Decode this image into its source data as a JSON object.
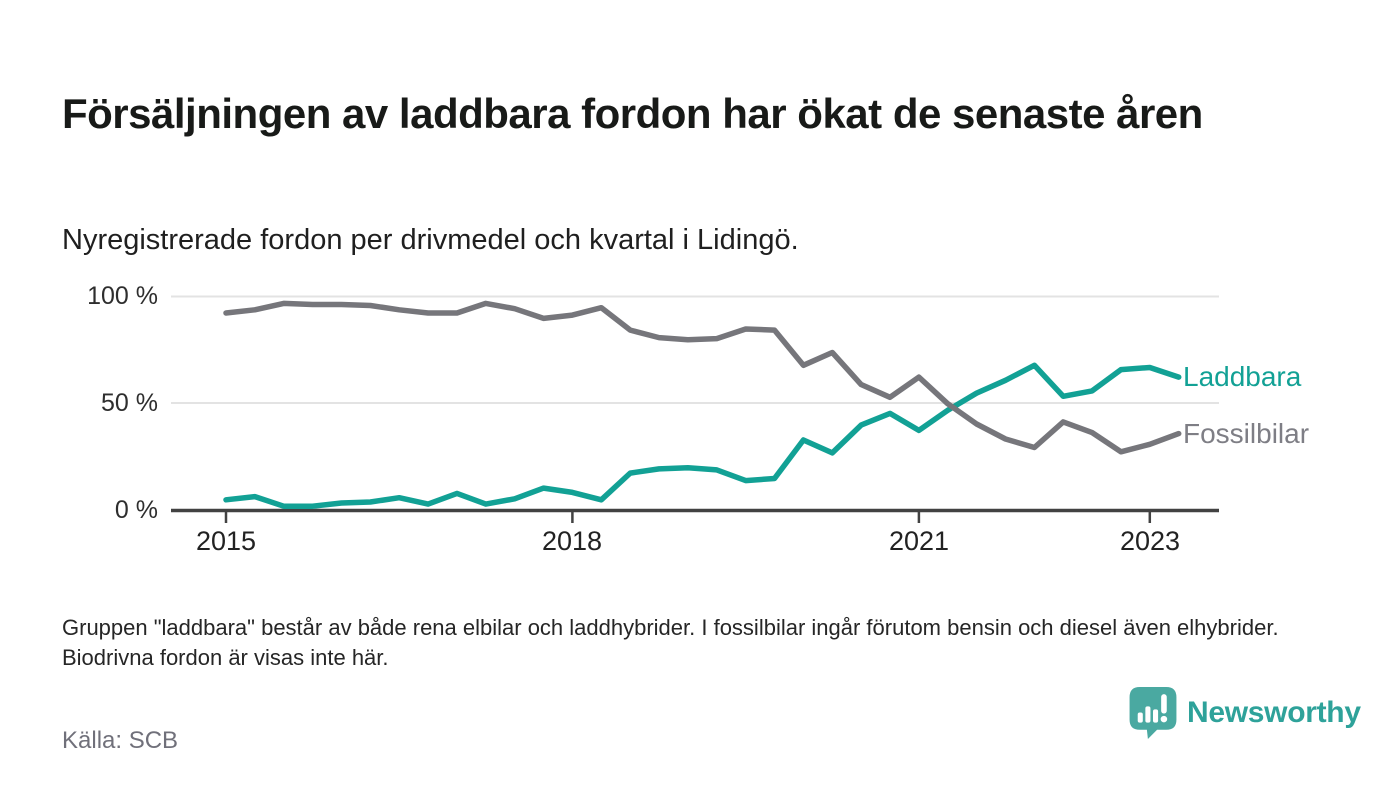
{
  "header": {
    "title": "Försäljningen av laddbara fordon har ökat de senaste åren",
    "subtitle": "Nyregistrerade fordon per drivmedel och kvartal i Lidingö."
  },
  "chart_data": {
    "type": "line",
    "title": "Försäljningen av laddbara fordon har ökat de senaste åren",
    "xlabel": "",
    "ylabel": "",
    "unit": "%",
    "ylim": [
      0,
      100
    ],
    "grid": "horizontal",
    "legend_position": "right-of-line-ends",
    "x": [
      "2015 Q1",
      "2015 Q2",
      "2015 Q3",
      "2015 Q4",
      "2016 Q1",
      "2016 Q2",
      "2016 Q3",
      "2016 Q4",
      "2017 Q1",
      "2017 Q2",
      "2017 Q3",
      "2017 Q4",
      "2018 Q1",
      "2018 Q2",
      "2018 Q3",
      "2018 Q4",
      "2019 Q1",
      "2019 Q2",
      "2019 Q3",
      "2019 Q4",
      "2020 Q1",
      "2020 Q2",
      "2020 Q3",
      "2020 Q4",
      "2021 Q1",
      "2021 Q2",
      "2021 Q3",
      "2021 Q4",
      "2022 Q1",
      "2022 Q2",
      "2022 Q3",
      "2022 Q4",
      "2023 Q1",
      "2023 Q2"
    ],
    "series": [
      {
        "name": "Laddbara",
        "color": "#12a195",
        "values": [
          5,
          6.5,
          2,
          2,
          3.5,
          4,
          6,
          3,
          8,
          3,
          5.5,
          10.5,
          8.5,
          5,
          17.5,
          19.5,
          20,
          19,
          14,
          15,
          33,
          27,
          40,
          45.5,
          37.5,
          47,
          55,
          61,
          68,
          53.5,
          56,
          66,
          67,
          62.5
        ]
      },
      {
        "name": "Fossilbilar",
        "color": "#76767b",
        "values": [
          92.5,
          94,
          97,
          96.5,
          96.5,
          96,
          94,
          92.5,
          92.5,
          97,
          94.5,
          90,
          91.5,
          95,
          84.5,
          81,
          80,
          80.5,
          85,
          84.5,
          68,
          74,
          59,
          53,
          62.5,
          50,
          40.5,
          33.5,
          29.5,
          41.5,
          36.5,
          27.5,
          31,
          36
        ]
      }
    ],
    "yticks": [
      {
        "value": 100,
        "label": "100 %"
      },
      {
        "value": 50,
        "label": "50 %"
      },
      {
        "value": 0,
        "label": "0 %"
      }
    ],
    "xticks": [
      {
        "index": 0,
        "label": "2015"
      },
      {
        "index": 12,
        "label": "2018"
      },
      {
        "index": 24,
        "label": "2021"
      },
      {
        "index": 32,
        "label": "2023"
      }
    ]
  },
  "footer": {
    "note": "Gruppen \"laddbara\" består av både rena elbilar och laddhybrider. I fossilbilar ingår förutom bensin och diesel även elhybrider. Biodrivna fordon är visas inte här.",
    "source": "Källa: SCB",
    "brand": "Newsworthy"
  },
  "colors": {
    "accent_teal": "#12a195",
    "line_gray": "#76767b",
    "gridline": "#e3e3e3",
    "axis": "#424242",
    "brand_teal": "#4aa9a1"
  }
}
